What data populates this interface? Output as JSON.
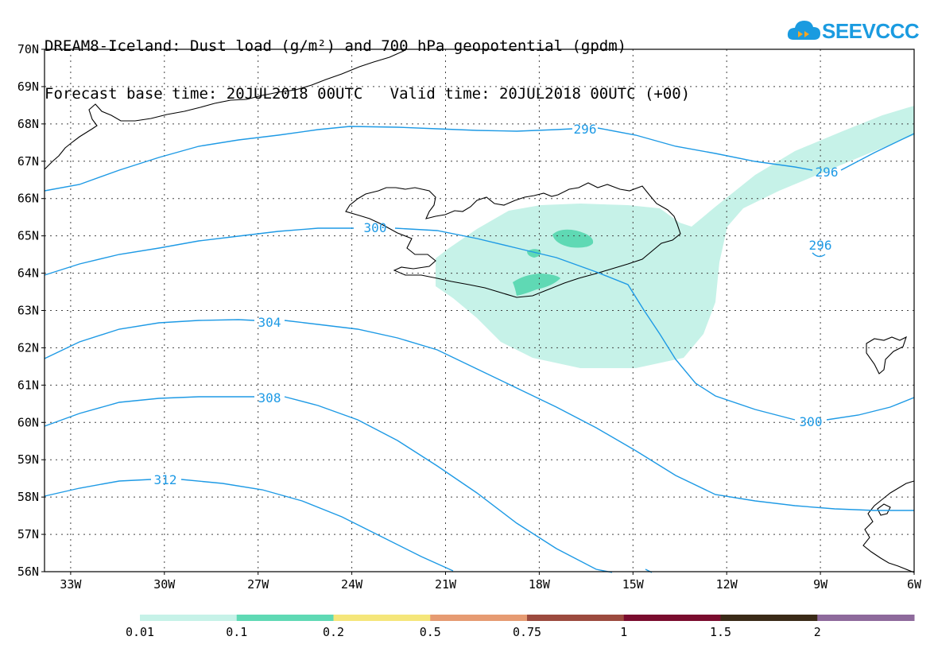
{
  "title": {
    "line1": "DREAM8-Iceland: Dust load (g/m²) and 700 hPa geopotential (gpdm)",
    "line2": "Forecast base time: 20JUL2018 00UTC   Valid time: 20JUL2018 00UTC (+00)"
  },
  "logo": {
    "text": "SEEVCCC"
  },
  "lat_labels": [
    "70N",
    "69N",
    "68N",
    "67N",
    "66N",
    "65N",
    "64N",
    "63N",
    "62N",
    "61N",
    "60N",
    "59N",
    "58N",
    "57N",
    "56N"
  ],
  "lon_labels": [
    "33W",
    "30W",
    "27W",
    "24W",
    "21W",
    "18W",
    "15W",
    "12W",
    "9W",
    "6W"
  ],
  "contour_labels": {
    "c296a": "296",
    "c296b": "296",
    "c296c": "296",
    "c300a": "300",
    "c300b": "300",
    "c304": "304",
    "c308": "308",
    "c312": "312"
  },
  "colorbar": {
    "colors": [
      "#c6f2e8",
      "#5fd9b4",
      "#f5e67a",
      "#e69b72",
      "#9c4a3e",
      "#7a0c2e",
      "#3a2a17",
      "#8e6a9c"
    ],
    "labels": [
      "0.01",
      "0.1",
      "0.2",
      "0.5",
      "0.75",
      "1",
      "1.5",
      "2"
    ]
  },
  "colors": {
    "contour": "#1e9ae5",
    "dust_light": "#c6f2e8",
    "dust_dark": "#5fd9b4"
  }
}
